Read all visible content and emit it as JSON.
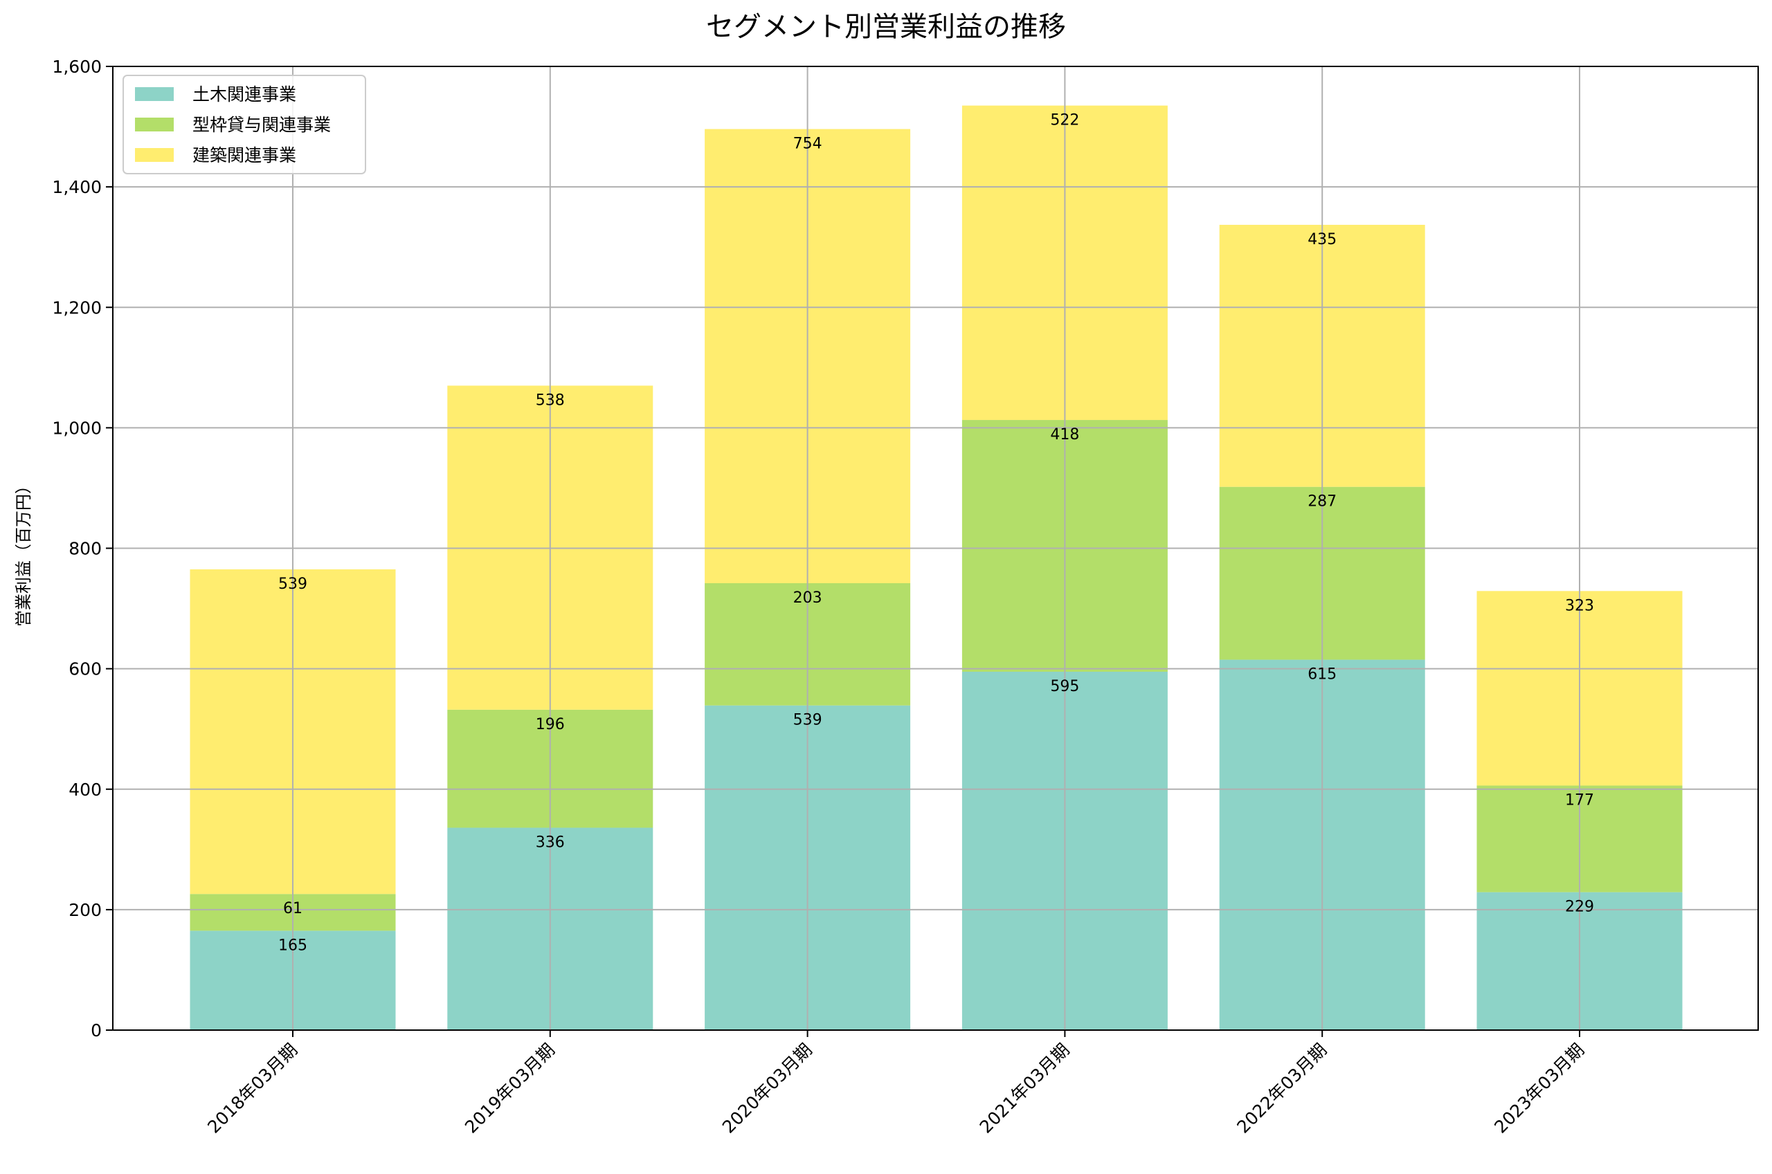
{
  "chart_data": {
    "type": "bar",
    "stacked": true,
    "title": "セグメント別営業利益の推移",
    "xlabel": "",
    "ylabel": "営業利益（百万円）",
    "ylim": [
      0,
      1600
    ],
    "yticks": [
      0,
      200,
      400,
      600,
      800,
      1000,
      1200,
      1400,
      1600
    ],
    "ytick_labels": [
      "0",
      "200",
      "400",
      "600",
      "800",
      "1,000",
      "1,200",
      "1,400",
      "1,600"
    ],
    "grid": true,
    "legend_position": "top-left",
    "categories": [
      "2018年03月期",
      "2019年03月期",
      "2020年03月期",
      "2021年03月期",
      "2022年03月期",
      "2023年03月期"
    ],
    "series": [
      {
        "name": "土木関連事業",
        "color": "#8dd3c7",
        "values": [
          165,
          336,
          539,
          595,
          615,
          229
        ]
      },
      {
        "name": "型枠貸与関連事業",
        "color": "#b3de69",
        "values": [
          61,
          196,
          203,
          418,
          287,
          177
        ]
      },
      {
        "name": "建築関連事業",
        "color": "#ffed6f",
        "values": [
          539,
          538,
          754,
          522,
          435,
          323
        ]
      }
    ]
  }
}
